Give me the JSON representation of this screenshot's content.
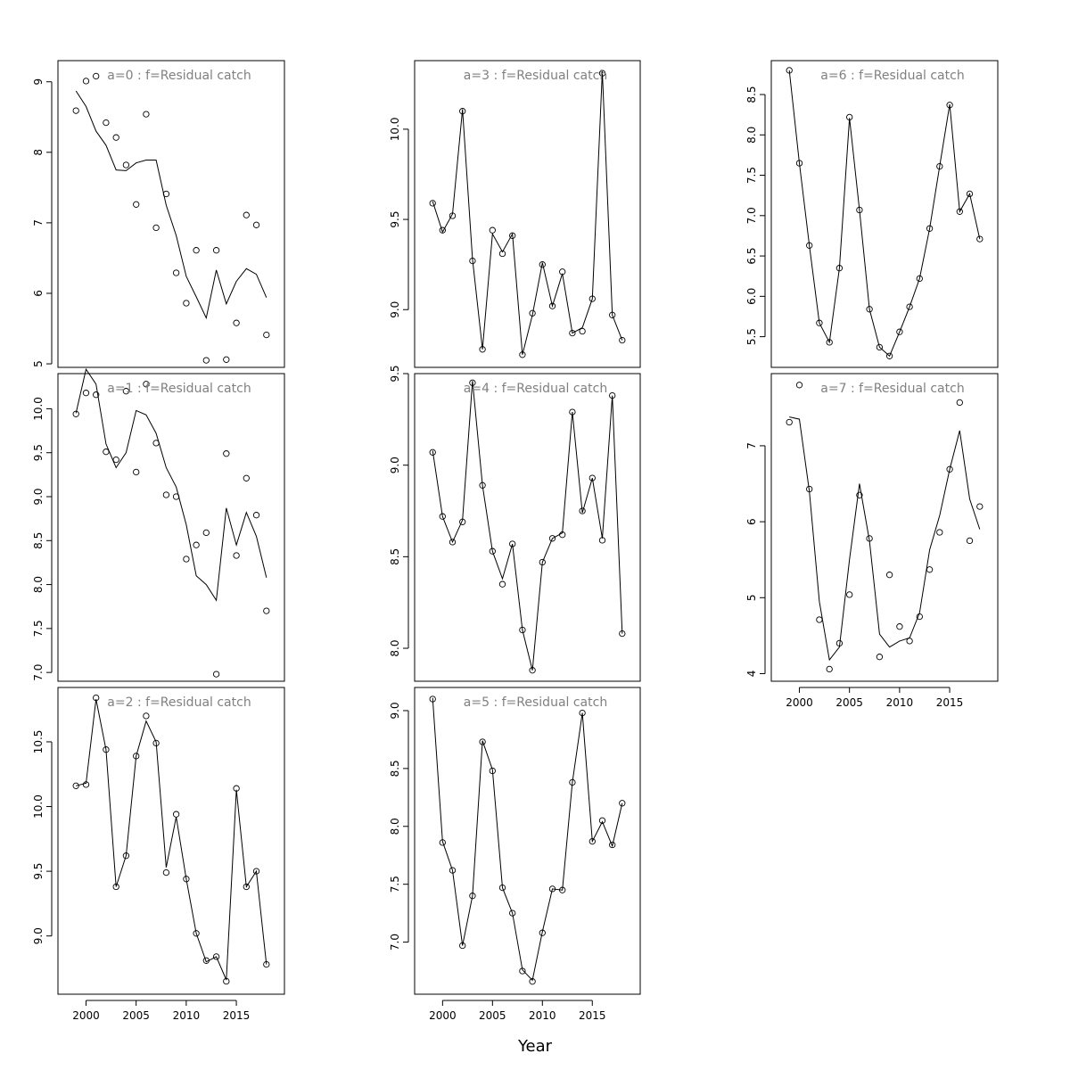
{
  "xlabel": "Year",
  "chart_data": [
    {
      "type": "line",
      "title": "a=0  :  f=Residual catch",
      "x": [
        1999,
        2000,
        2001,
        2002,
        2003,
        2004,
        2005,
        2006,
        2007,
        2008,
        2009,
        2010,
        2011,
        2012,
        2013,
        2014,
        2015,
        2016,
        2017,
        2018
      ],
      "xlim": [
        1997.2,
        2019.8
      ],
      "ylim": [
        4.95,
        9.3
      ],
      "yticks": [
        5,
        6,
        7,
        8,
        9
      ],
      "ytick_labels": [
        "5",
        "6",
        "7",
        "8",
        "9"
      ],
      "xticks": [
        2000,
        2005,
        2010,
        2015
      ],
      "xtick_labels": [
        "2000",
        "2005",
        "2010",
        "2015"
      ],
      "series": [
        {
          "kind": "fitted",
          "values": [
            8.87,
            8.65,
            8.3,
            8.1,
            7.75,
            7.74,
            7.85,
            7.89,
            7.89,
            7.25,
            6.82,
            6.24,
            5.95,
            5.65,
            6.33,
            5.85,
            6.17,
            6.35,
            6.27,
            5.94
          ]
        },
        {
          "kind": "observed",
          "values": [
            8.59,
            9.01,
            9.08,
            8.42,
            8.21,
            7.82,
            7.26,
            8.54,
            6.93,
            7.41,
            6.29,
            5.86,
            6.61,
            5.05,
            6.61,
            5.06,
            5.58,
            7.11,
            6.97,
            5.41
          ]
        }
      ]
    },
    {
      "type": "line",
      "title": "a=1  :  f=Residual catch",
      "x": [
        1999,
        2000,
        2001,
        2002,
        2003,
        2004,
        2005,
        2006,
        2007,
        2008,
        2009,
        2010,
        2011,
        2012,
        2013,
        2014,
        2015,
        2016,
        2017,
        2018
      ],
      "xlim": [
        1997.2,
        2019.8
      ],
      "ylim": [
        6.9,
        10.4
      ],
      "yticks": [
        7,
        7.5,
        8,
        8.5,
        9,
        9.5,
        10
      ],
      "ytick_labels": [
        "7.0",
        "7.5",
        "8.0",
        "8.5",
        "9.0",
        "9.5",
        "10.0"
      ],
      "xticks": [
        2000,
        2005,
        2010,
        2015
      ],
      "xtick_labels": [
        "2000",
        "2005",
        "2010",
        "2015"
      ],
      "series": [
        {
          "kind": "fitted",
          "values": [
            9.95,
            10.45,
            10.28,
            9.6,
            9.33,
            9.5,
            9.98,
            9.93,
            9.72,
            9.33,
            9.11,
            8.68,
            8.1,
            8.0,
            7.82,
            8.87,
            8.45,
            8.82,
            8.55,
            8.08
          ]
        },
        {
          "kind": "observed",
          "values": [
            9.94,
            10.18,
            10.16,
            9.51,
            9.42,
            10.2,
            9.28,
            10.28,
            9.61,
            9.02,
            9.0,
            8.29,
            8.45,
            8.59,
            6.98,
            9.49,
            8.33,
            9.21,
            8.79,
            7.7
          ]
        }
      ]
    },
    {
      "type": "line",
      "title": "a=2  :  f=Residual catch",
      "x": [
        1999,
        2000,
        2001,
        2002,
        2003,
        2004,
        2005,
        2006,
        2007,
        2008,
        2009,
        2010,
        2011,
        2012,
        2013,
        2014,
        2015,
        2016,
        2017,
        2018
      ],
      "xlim": [
        1997.2,
        2019.8
      ],
      "ylim": [
        8.55,
        10.92
      ],
      "yticks": [
        9,
        9.5,
        10,
        10.5
      ],
      "ytick_labels": [
        "9.0",
        "9.5",
        "10.0",
        "10.5"
      ],
      "xticks": [
        2000,
        2005,
        2010,
        2015
      ],
      "xtick_labels": [
        "2000",
        "2005",
        "2010",
        "2015"
      ],
      "series": [
        {
          "kind": "fitted",
          "values": [
            10.16,
            10.18,
            10.83,
            10.44,
            9.38,
            9.62,
            10.39,
            10.66,
            10.5,
            9.53,
            9.92,
            9.44,
            9.02,
            8.8,
            8.84,
            8.66,
            10.13,
            9.38,
            9.5,
            8.78
          ]
        },
        {
          "kind": "observed",
          "values": [
            10.16,
            10.17,
            10.84,
            10.44,
            9.38,
            9.62,
            10.39,
            10.7,
            10.49,
            9.49,
            9.94,
            9.44,
            9.02,
            8.81,
            8.84,
            8.65,
            10.14,
            9.38,
            9.5,
            8.78
          ]
        }
      ]
    },
    {
      "type": "line",
      "title": "a=3  :  f=Residual catch",
      "x": [
        1999,
        2000,
        2001,
        2002,
        2003,
        2004,
        2005,
        2006,
        2007,
        2008,
        2009,
        2010,
        2011,
        2012,
        2013,
        2014,
        2015,
        2016,
        2017,
        2018
      ],
      "xlim": [
        1997.2,
        2019.8
      ],
      "ylim": [
        8.68,
        10.38
      ],
      "yticks": [
        9,
        9.5,
        10
      ],
      "ytick_labels": [
        "9.0",
        "9.5",
        "10.0"
      ],
      "xticks": [
        2000,
        2005,
        2010,
        2015
      ],
      "xtick_labels": [
        "2000",
        "2005",
        "2010",
        "2015"
      ],
      "series": [
        {
          "kind": "fitted",
          "values": [
            9.6,
            9.43,
            9.53,
            10.11,
            9.28,
            8.78,
            9.42,
            9.32,
            9.42,
            8.75,
            8.97,
            9.26,
            9.02,
            9.2,
            8.87,
            8.9,
            9.06,
            10.32,
            8.97,
            8.83
          ]
        },
        {
          "kind": "observed",
          "values": [
            9.59,
            9.44,
            9.52,
            10.1,
            9.27,
            8.78,
            9.44,
            9.31,
            9.41,
            8.75,
            8.98,
            9.25,
            9.02,
            9.21,
            8.87,
            8.88,
            9.06,
            10.31,
            8.97,
            8.83
          ]
        }
      ]
    },
    {
      "type": "line",
      "title": "a=4  :  f=Residual catch",
      "x": [
        1999,
        2000,
        2001,
        2002,
        2003,
        2004,
        2005,
        2006,
        2007,
        2008,
        2009,
        2010,
        2011,
        2012,
        2013,
        2014,
        2015,
        2016,
        2017,
        2018
      ],
      "xlim": [
        1997.2,
        2019.8
      ],
      "ylim": [
        7.82,
        9.5
      ],
      "yticks": [
        8,
        8.5,
        9,
        9.5
      ],
      "ytick_labels": [
        "8.0",
        "8.5",
        "9.0",
        "9.5"
      ],
      "xticks": [
        2000,
        2005,
        2010,
        2015
      ],
      "xtick_labels": [
        "2000",
        "2005",
        "2010",
        "2015"
      ],
      "series": [
        {
          "kind": "fitted",
          "values": [
            9.08,
            8.72,
            8.58,
            8.7,
            9.46,
            8.89,
            8.53,
            8.38,
            8.57,
            8.1,
            7.88,
            8.47,
            8.6,
            8.63,
            9.29,
            8.74,
            8.93,
            8.6,
            9.38,
            8.08
          ]
        },
        {
          "kind": "observed",
          "values": [
            9.07,
            8.72,
            8.58,
            8.69,
            9.45,
            8.89,
            8.53,
            8.35,
            8.57,
            8.1,
            7.88,
            8.47,
            8.6,
            8.62,
            9.29,
            8.75,
            8.93,
            8.59,
            9.38,
            8.08
          ]
        }
      ]
    },
    {
      "type": "line",
      "title": "a=5  :  f=Residual catch",
      "x": [
        1999,
        2000,
        2001,
        2002,
        2003,
        2004,
        2005,
        2006,
        2007,
        2008,
        2009,
        2010,
        2011,
        2012,
        2013,
        2014,
        2015,
        2016,
        2017,
        2018
      ],
      "xlim": [
        1997.2,
        2019.8
      ],
      "ylim": [
        6.55,
        9.2
      ],
      "yticks": [
        7,
        7.5,
        8,
        8.5,
        9
      ],
      "ytick_labels": [
        "7.0",
        "7.5",
        "8.0",
        "8.5",
        "9.0"
      ],
      "xticks": [
        2000,
        2005,
        2010,
        2015
      ],
      "xtick_labels": [
        "2000",
        "2005",
        "2010",
        "2015"
      ],
      "series": [
        {
          "kind": "fitted",
          "values": [
            9.11,
            7.87,
            7.62,
            6.97,
            7.4,
            8.74,
            8.49,
            7.47,
            7.25,
            6.76,
            6.67,
            7.09,
            7.46,
            7.45,
            8.38,
            8.98,
            7.87,
            8.04,
            7.83,
            8.2
          ]
        },
        {
          "kind": "observed",
          "values": [
            9.1,
            7.86,
            7.62,
            6.97,
            7.4,
            8.73,
            8.48,
            7.47,
            7.25,
            6.75,
            6.66,
            7.08,
            7.46,
            7.45,
            8.38,
            8.98,
            7.87,
            8.05,
            7.84,
            8.2
          ]
        }
      ]
    },
    {
      "type": "line",
      "title": "a=6  :  f=Residual catch",
      "x": [
        1999,
        2000,
        2001,
        2002,
        2003,
        2004,
        2005,
        2006,
        2007,
        2008,
        2009,
        2010,
        2011,
        2012,
        2013,
        2014,
        2015,
        2016,
        2017,
        2018
      ],
      "xlim": [
        1997.2,
        2019.8
      ],
      "ylim": [
        5.12,
        8.92
      ],
      "yticks": [
        5.5,
        6,
        6.5,
        7,
        7.5,
        8,
        8.5
      ],
      "ytick_labels": [
        "5.5",
        "6.0",
        "6.5",
        "7.0",
        "7.5",
        "8.0",
        "8.5"
      ],
      "xticks": [
        2000,
        2005,
        2010,
        2015
      ],
      "xtick_labels": [
        "2000",
        "2005",
        "2010",
        "2015"
      ],
      "series": [
        {
          "kind": "fitted",
          "values": [
            8.8,
            7.65,
            6.63,
            5.67,
            5.43,
            6.35,
            8.21,
            7.07,
            5.84,
            5.37,
            5.26,
            5.56,
            5.87,
            6.22,
            6.84,
            7.61,
            8.38,
            7.05,
            7.27,
            6.71
          ]
        },
        {
          "kind": "observed",
          "values": [
            8.8,
            7.65,
            6.63,
            5.67,
            5.43,
            6.35,
            8.22,
            7.07,
            5.84,
            5.37,
            5.26,
            5.56,
            5.87,
            6.22,
            6.84,
            7.61,
            8.37,
            7.05,
            7.27,
            6.71
          ]
        }
      ]
    },
    {
      "type": "line",
      "title": "a=7  :  f=Residual catch",
      "x": [
        1999,
        2000,
        2001,
        2002,
        2003,
        2004,
        2005,
        2006,
        2007,
        2008,
        2009,
        2010,
        2011,
        2012,
        2013,
        2014,
        2015,
        2016,
        2017,
        2018
      ],
      "xlim": [
        1997.2,
        2019.8
      ],
      "ylim": [
        3.9,
        7.95
      ],
      "yticks": [
        4,
        5,
        6,
        7
      ],
      "ytick_labels": [
        "4",
        "5",
        "6",
        "7"
      ],
      "xticks": [
        2000,
        2005,
        2010,
        2015
      ],
      "xtick_labels": [
        "2000",
        "2005",
        "2010",
        "2015"
      ],
      "series": [
        {
          "kind": "fitted",
          "values": [
            7.38,
            7.35,
            6.4,
            4.95,
            4.18,
            4.35,
            5.5,
            6.5,
            5.75,
            4.52,
            4.35,
            4.43,
            4.47,
            4.8,
            5.63,
            6.08,
            6.69,
            7.2,
            6.3,
            5.9
          ]
        },
        {
          "kind": "observed",
          "values": [
            7.31,
            7.8,
            6.43,
            4.71,
            4.06,
            4.4,
            5.04,
            6.35,
            5.78,
            4.22,
            5.3,
            4.62,
            4.43,
            4.75,
            5.37,
            5.86,
            6.69,
            7.57,
            5.75,
            6.2
          ]
        }
      ]
    }
  ]
}
